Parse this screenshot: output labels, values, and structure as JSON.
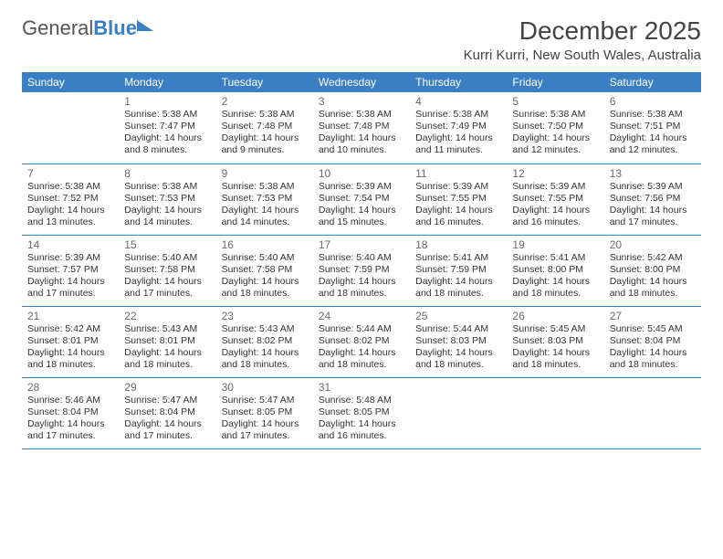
{
  "logo": {
    "word1": "General",
    "word2": "Blue"
  },
  "header": {
    "month_title": "December 2025",
    "location": "Kurri Kurri, New South Wales, Australia"
  },
  "calendar": {
    "day_headers": [
      "Sunday",
      "Monday",
      "Tuesday",
      "Wednesday",
      "Thursday",
      "Friday",
      "Saturday"
    ],
    "header_bg": "#3a7fc4",
    "header_text_color": "#ffffff",
    "row_border_color": "#3a7fc4",
    "shade_color": "#ececec",
    "font_family": "Arial",
    "daynum_fontsize": 12,
    "cell_fontsize": 10.5,
    "weeks": [
      [
        {
          "day": null
        },
        {
          "day": 1,
          "shaded": true,
          "sunrise": "Sunrise: 5:38 AM",
          "sunset": "Sunset: 7:47 PM",
          "daylight1": "Daylight: 14 hours",
          "daylight2": "and 8 minutes."
        },
        {
          "day": 2,
          "shaded": true,
          "sunrise": "Sunrise: 5:38 AM",
          "sunset": "Sunset: 7:48 PM",
          "daylight1": "Daylight: 14 hours",
          "daylight2": "and 9 minutes."
        },
        {
          "day": 3,
          "shaded": true,
          "sunrise": "Sunrise: 5:38 AM",
          "sunset": "Sunset: 7:48 PM",
          "daylight1": "Daylight: 14 hours",
          "daylight2": "and 10 minutes."
        },
        {
          "day": 4,
          "shaded": true,
          "sunrise": "Sunrise: 5:38 AM",
          "sunset": "Sunset: 7:49 PM",
          "daylight1": "Daylight: 14 hours",
          "daylight2": "and 11 minutes."
        },
        {
          "day": 5,
          "shaded": true,
          "sunrise": "Sunrise: 5:38 AM",
          "sunset": "Sunset: 7:50 PM",
          "daylight1": "Daylight: 14 hours",
          "daylight2": "and 12 minutes."
        },
        {
          "day": 6,
          "shaded": true,
          "sunrise": "Sunrise: 5:38 AM",
          "sunset": "Sunset: 7:51 PM",
          "daylight1": "Daylight: 14 hours",
          "daylight2": "and 12 minutes."
        }
      ],
      [
        {
          "day": 7,
          "sunrise": "Sunrise: 5:38 AM",
          "sunset": "Sunset: 7:52 PM",
          "daylight1": "Daylight: 14 hours",
          "daylight2": "and 13 minutes."
        },
        {
          "day": 8,
          "shaded": true,
          "sunrise": "Sunrise: 5:38 AM",
          "sunset": "Sunset: 7:53 PM",
          "daylight1": "Daylight: 14 hours",
          "daylight2": "and 14 minutes."
        },
        {
          "day": 9,
          "shaded": true,
          "sunrise": "Sunrise: 5:38 AM",
          "sunset": "Sunset: 7:53 PM",
          "daylight1": "Daylight: 14 hours",
          "daylight2": "and 14 minutes."
        },
        {
          "day": 10,
          "shaded": true,
          "sunrise": "Sunrise: 5:39 AM",
          "sunset": "Sunset: 7:54 PM",
          "daylight1": "Daylight: 14 hours",
          "daylight2": "and 15 minutes."
        },
        {
          "day": 11,
          "shaded": true,
          "sunrise": "Sunrise: 5:39 AM",
          "sunset": "Sunset: 7:55 PM",
          "daylight1": "Daylight: 14 hours",
          "daylight2": "and 16 minutes."
        },
        {
          "day": 12,
          "shaded": true,
          "sunrise": "Sunrise: 5:39 AM",
          "sunset": "Sunset: 7:55 PM",
          "daylight1": "Daylight: 14 hours",
          "daylight2": "and 16 minutes."
        },
        {
          "day": 13,
          "shaded": true,
          "sunrise": "Sunrise: 5:39 AM",
          "sunset": "Sunset: 7:56 PM",
          "daylight1": "Daylight: 14 hours",
          "daylight2": "and 17 minutes."
        }
      ],
      [
        {
          "day": 14,
          "sunrise": "Sunrise: 5:39 AM",
          "sunset": "Sunset: 7:57 PM",
          "daylight1": "Daylight: 14 hours",
          "daylight2": "and 17 minutes."
        },
        {
          "day": 15,
          "shaded": true,
          "sunrise": "Sunrise: 5:40 AM",
          "sunset": "Sunset: 7:58 PM",
          "daylight1": "Daylight: 14 hours",
          "daylight2": "and 17 minutes."
        },
        {
          "day": 16,
          "shaded": true,
          "sunrise": "Sunrise: 5:40 AM",
          "sunset": "Sunset: 7:58 PM",
          "daylight1": "Daylight: 14 hours",
          "daylight2": "and 18 minutes."
        },
        {
          "day": 17,
          "shaded": true,
          "sunrise": "Sunrise: 5:40 AM",
          "sunset": "Sunset: 7:59 PM",
          "daylight1": "Daylight: 14 hours",
          "daylight2": "and 18 minutes."
        },
        {
          "day": 18,
          "shaded": true,
          "sunrise": "Sunrise: 5:41 AM",
          "sunset": "Sunset: 7:59 PM",
          "daylight1": "Daylight: 14 hours",
          "daylight2": "and 18 minutes."
        },
        {
          "day": 19,
          "shaded": true,
          "sunrise": "Sunrise: 5:41 AM",
          "sunset": "Sunset: 8:00 PM",
          "daylight1": "Daylight: 14 hours",
          "daylight2": "and 18 minutes."
        },
        {
          "day": 20,
          "shaded": true,
          "sunrise": "Sunrise: 5:42 AM",
          "sunset": "Sunset: 8:00 PM",
          "daylight1": "Daylight: 14 hours",
          "daylight2": "and 18 minutes."
        }
      ],
      [
        {
          "day": 21,
          "sunrise": "Sunrise: 5:42 AM",
          "sunset": "Sunset: 8:01 PM",
          "daylight1": "Daylight: 14 hours",
          "daylight2": "and 18 minutes."
        },
        {
          "day": 22,
          "shaded": true,
          "sunrise": "Sunrise: 5:43 AM",
          "sunset": "Sunset: 8:01 PM",
          "daylight1": "Daylight: 14 hours",
          "daylight2": "and 18 minutes."
        },
        {
          "day": 23,
          "shaded": true,
          "sunrise": "Sunrise: 5:43 AM",
          "sunset": "Sunset: 8:02 PM",
          "daylight1": "Daylight: 14 hours",
          "daylight2": "and 18 minutes."
        },
        {
          "day": 24,
          "shaded": true,
          "sunrise": "Sunrise: 5:44 AM",
          "sunset": "Sunset: 8:02 PM",
          "daylight1": "Daylight: 14 hours",
          "daylight2": "and 18 minutes."
        },
        {
          "day": 25,
          "shaded": true,
          "sunrise": "Sunrise: 5:44 AM",
          "sunset": "Sunset: 8:03 PM",
          "daylight1": "Daylight: 14 hours",
          "daylight2": "and 18 minutes."
        },
        {
          "day": 26,
          "shaded": true,
          "sunrise": "Sunrise: 5:45 AM",
          "sunset": "Sunset: 8:03 PM",
          "daylight1": "Daylight: 14 hours",
          "daylight2": "and 18 minutes."
        },
        {
          "day": 27,
          "shaded": true,
          "sunrise": "Sunrise: 5:45 AM",
          "sunset": "Sunset: 8:04 PM",
          "daylight1": "Daylight: 14 hours",
          "daylight2": "and 18 minutes."
        }
      ],
      [
        {
          "day": 28,
          "sunrise": "Sunrise: 5:46 AM",
          "sunset": "Sunset: 8:04 PM",
          "daylight1": "Daylight: 14 hours",
          "daylight2": "and 17 minutes."
        },
        {
          "day": 29,
          "shaded": true,
          "sunrise": "Sunrise: 5:47 AM",
          "sunset": "Sunset: 8:04 PM",
          "daylight1": "Daylight: 14 hours",
          "daylight2": "and 17 minutes."
        },
        {
          "day": 30,
          "shaded": true,
          "sunrise": "Sunrise: 5:47 AM",
          "sunset": "Sunset: 8:05 PM",
          "daylight1": "Daylight: 14 hours",
          "daylight2": "and 17 minutes."
        },
        {
          "day": 31,
          "shaded": true,
          "sunrise": "Sunrise: 5:48 AM",
          "sunset": "Sunset: 8:05 PM",
          "daylight1": "Daylight: 14 hours",
          "daylight2": "and 16 minutes."
        },
        {
          "day": null
        },
        {
          "day": null
        },
        {
          "day": null
        }
      ]
    ]
  }
}
